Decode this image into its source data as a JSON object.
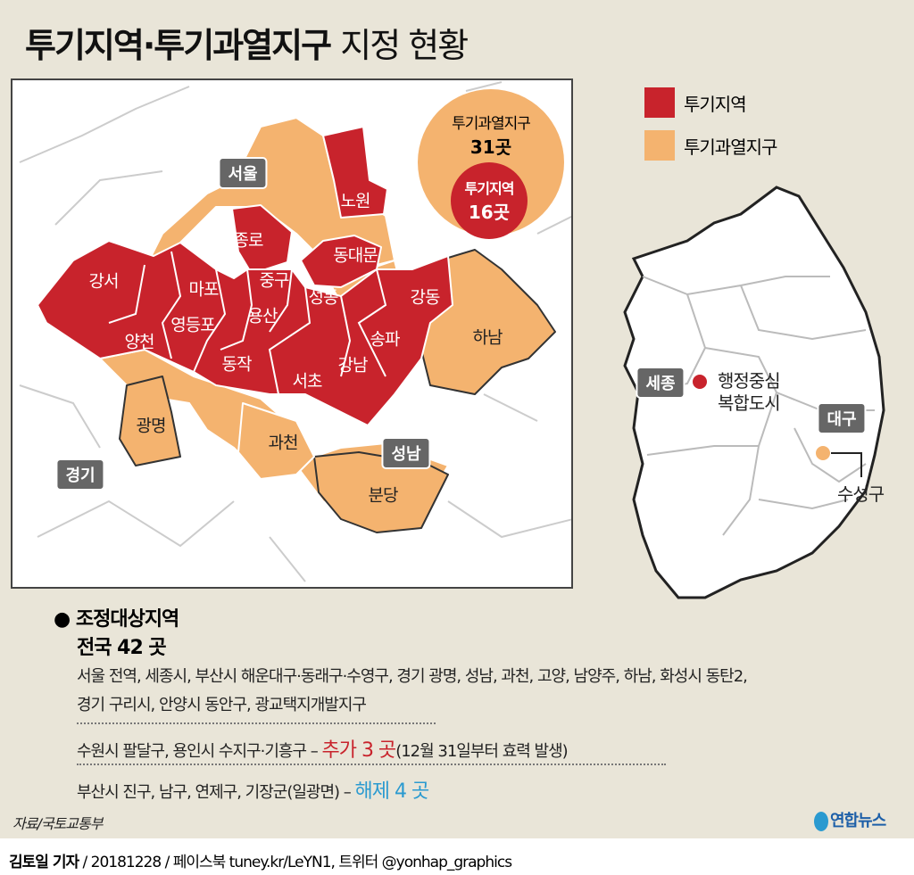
{
  "title": {
    "bold": "투기지역·투기과열지구",
    "light": "지정 현황"
  },
  "colors": {
    "speculation_area": "#c8232c",
    "overheated_district": "#f4b36f",
    "background": "#e9e5d8",
    "added": "#c8232c",
    "removed": "#2a9ad0"
  },
  "legend": [
    {
      "label": "투기지역",
      "color": "#c8232c"
    },
    {
      "label": "투기과열지구",
      "color": "#f4b36f"
    }
  ],
  "summary": {
    "overheated_label": "투기과열지구",
    "overheated_count": "31곳",
    "speculation_label": "투기지역",
    "speculation_count": "16곳"
  },
  "badges": {
    "seoul": "서울",
    "seongnam": "성남",
    "gyeonggi": "경기",
    "sejong": "세종",
    "daegu": "대구"
  },
  "districts": {
    "nowon": "노원",
    "jongno": "종로",
    "dongdaemun": "동대문",
    "junggu": "중구",
    "mapo": "마포",
    "gangseo": "강서",
    "seongdong": "성동",
    "gangdong": "강동",
    "yeongdeungpo": "영등포",
    "yongsan": "용산",
    "yangcheon": "양천",
    "songpa": "송파",
    "hanam": "하남",
    "dongjak": "동작",
    "seocho": "서초",
    "gangnam": "강남",
    "gwangmyeong": "광명",
    "gwacheon": "과천",
    "bundang": "분당"
  },
  "korea": {
    "sejong_label_1": "행정중심",
    "sejong_label_2": "복합도시",
    "daegu_label": "수성구"
  },
  "adjustment": {
    "heading": "조정대상지역",
    "total": "전국 42 곳",
    "list_line1": "서울 전역, 세종시, 부산시 해운대구·동래구·수영구, 경기 광명, 성남, 과천, 고양, 남양주, 하남, 화성시 동탄2,",
    "list_line2": "경기 구리시, 안양시 동안구, 광교택지개발지구",
    "added_prefix": "수원시 팔달구, 용인시 수지구·기흥구 –",
    "added_highlight": "추가 3 곳",
    "added_suffix": "(12월 31일부터 효력 발생)",
    "removed_prefix": "부산시 진구, 남구, 연제구, 기장군(일광면) –",
    "removed_highlight": "해제 4 곳"
  },
  "source": "자료/국토교통부",
  "logo": "연합뉴스",
  "footer": {
    "author": "김토일 기자",
    "rest": " / 20181228 / 페이스북 tuney.kr/LeYN1, 트위터 @yonhap_graphics"
  }
}
